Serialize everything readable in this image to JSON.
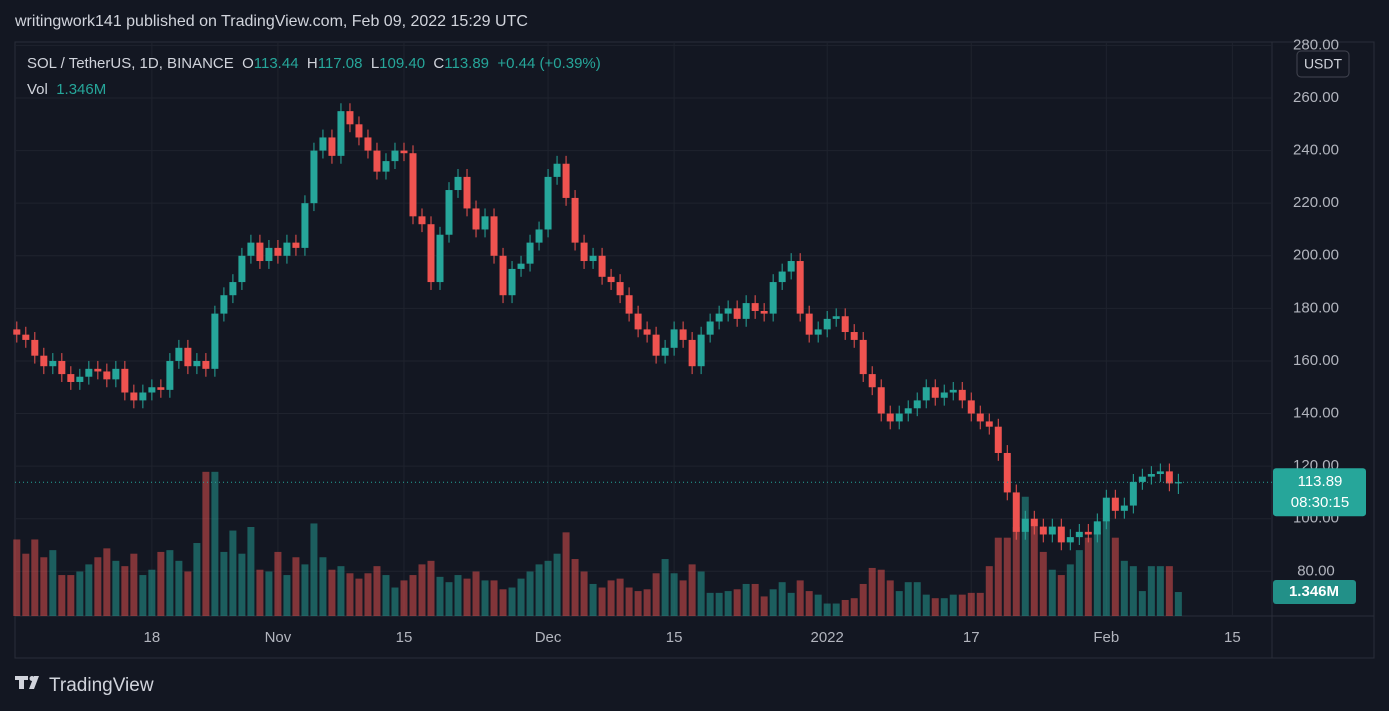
{
  "header": {
    "published": "writingwork141 published on TradingView.com, Feb 09, 2022 15:29 UTC"
  },
  "footer": {
    "brand": "TradingView"
  },
  "chart_data": {
    "type": "candlestick",
    "legend": {
      "symbol": "SOL / TetherUS, 1D, BINANCE",
      "items": [
        {
          "key": "O",
          "value": "113.44"
        },
        {
          "key": "H",
          "value": "117.08"
        },
        {
          "key": "L",
          "value": "109.40"
        },
        {
          "key": "C",
          "value": "113.89"
        }
      ],
      "change": "+0.44 (+0.39%)",
      "volume_key": "Vol",
      "volume": "1.346M"
    },
    "currency": "USDT",
    "countdown": "08:30:15",
    "up_color": "#26a69a",
    "down_color": "#ef5350",
    "grid": true,
    "ylim": [
      63,
      281.3
    ],
    "yticks": [
      {
        "value": 80,
        "label": "80.00"
      },
      {
        "value": 100,
        "label": "100.00"
      },
      {
        "value": 120,
        "label": "120.00"
      },
      {
        "value": 140,
        "label": "140.00"
      },
      {
        "value": 160,
        "label": "160.00"
      },
      {
        "value": 180,
        "label": "180.00"
      },
      {
        "value": 200,
        "label": "200.00"
      },
      {
        "value": 220,
        "label": "220.00"
      },
      {
        "value": 240,
        "label": "240.00"
      },
      {
        "value": 260,
        "label": "260.00"
      },
      {
        "value": 280,
        "label": "280.00"
      }
    ],
    "xlim": [
      -0.2,
      139.4
    ],
    "xticks": [
      {
        "value": 15,
        "label": "18"
      },
      {
        "value": 29,
        "label": "Nov"
      },
      {
        "value": 43,
        "label": "15"
      },
      {
        "value": 59,
        "label": "Dec"
      },
      {
        "value": 73,
        "label": "15"
      },
      {
        "value": 90,
        "label": "2022"
      },
      {
        "value": 106,
        "label": "17"
      },
      {
        "value": 121,
        "label": "Feb"
      },
      {
        "value": 135,
        "label": "15"
      }
    ],
    "open": [
      172,
      170,
      168,
      162,
      158,
      160,
      155,
      152,
      154,
      157,
      156,
      153,
      157,
      148,
      145,
      148,
      150,
      149,
      160,
      165,
      158,
      160,
      157,
      178,
      185,
      190,
      200,
      205,
      198,
      203,
      200,
      205,
      203,
      220,
      240,
      245,
      238,
      255,
      250,
      245,
      240,
      232,
      236,
      240,
      239,
      215,
      212,
      190,
      208,
      225,
      230,
      218,
      210,
      215,
      200,
      185,
      195,
      197,
      205,
      210,
      230,
      235,
      222,
      205,
      198,
      200,
      192,
      190,
      185,
      178,
      172,
      170,
      162,
      165,
      172,
      168,
      158,
      170,
      175,
      178,
      180,
      176,
      182,
      179,
      178,
      190,
      194,
      198,
      178,
      170,
      172,
      176,
      177,
      171,
      168,
      155,
      150,
      140,
      137,
      140,
      142,
      145,
      150,
      146,
      148,
      149,
      145,
      140,
      137,
      135,
      125,
      110,
      95,
      100,
      97,
      94,
      97,
      91,
      93,
      95,
      94,
      99,
      108,
      103,
      105,
      114,
      116,
      117,
      118,
      113.44
    ],
    "high": [
      175,
      173,
      171,
      165,
      163,
      163,
      158,
      157,
      160,
      160,
      159,
      160,
      160,
      151,
      151,
      153,
      153,
      163,
      168,
      168,
      163,
      163,
      181,
      188,
      193,
      203,
      208,
      208,
      206,
      206,
      208,
      208,
      223,
      243,
      248,
      248,
      258,
      258,
      253,
      248,
      243,
      239,
      243,
      243,
      242,
      218,
      215,
      211,
      228,
      233,
      233,
      221,
      218,
      218,
      203,
      198,
      200,
      208,
      213,
      233,
      238,
      238,
      225,
      208,
      203,
      203,
      195,
      193,
      188,
      181,
      175,
      173,
      168,
      175,
      175,
      171,
      173,
      178,
      181,
      183,
      183,
      185,
      185,
      182,
      193,
      197,
      201,
      201,
      181,
      175,
      179,
      180,
      180,
      174,
      171,
      158,
      153,
      143,
      143,
      145,
      148,
      153,
      153,
      151,
      152,
      152,
      148,
      143,
      140,
      138,
      128,
      113,
      103,
      103,
      100,
      100,
      100,
      96,
      98,
      98,
      102,
      111,
      111,
      108,
      117,
      119,
      120,
      121,
      121,
      117.08
    ],
    "low": [
      167,
      165,
      159,
      155,
      155,
      152,
      149,
      149,
      151,
      153,
      150,
      150,
      145,
      142,
      142,
      145,
      146,
      146,
      157,
      155,
      155,
      154,
      154,
      175,
      182,
      187,
      197,
      195,
      195,
      197,
      197,
      200,
      200,
      217,
      237,
      235,
      235,
      247,
      242,
      237,
      229,
      229,
      233,
      236,
      212,
      209,
      187,
      187,
      205,
      222,
      215,
      207,
      207,
      197,
      182,
      182,
      192,
      194,
      202,
      207,
      227,
      219,
      202,
      195,
      195,
      189,
      187,
      182,
      175,
      169,
      167,
      159,
      159,
      162,
      165,
      155,
      155,
      167,
      172,
      175,
      173,
      173,
      176,
      175,
      175,
      187,
      191,
      175,
      167,
      167,
      169,
      173,
      168,
      165,
      152,
      147,
      137,
      134,
      134,
      137,
      139,
      142,
      143,
      143,
      145,
      142,
      137,
      134,
      132,
      122,
      107,
      92,
      92,
      94,
      91,
      91,
      88,
      88,
      90,
      91,
      91,
      96,
      100,
      100,
      102,
      111,
      113,
      114,
      110.44,
      109.4
    ],
    "close": [
      170,
      168,
      162,
      158,
      160,
      155,
      152,
      154,
      157,
      156,
      153,
      157,
      148,
      145,
      148,
      150,
      149,
      160,
      165,
      158,
      160,
      157,
      178,
      185,
      190,
      200,
      205,
      198,
      203,
      200,
      205,
      203,
      220,
      240,
      245,
      238,
      255,
      250,
      245,
      240,
      232,
      236,
      240,
      239,
      215,
      212,
      190,
      208,
      225,
      230,
      218,
      210,
      215,
      200,
      185,
      195,
      197,
      205,
      210,
      230,
      235,
      222,
      205,
      198,
      200,
      192,
      190,
      185,
      178,
      172,
      170,
      162,
      165,
      172,
      168,
      158,
      170,
      175,
      178,
      180,
      176,
      182,
      179,
      178,
      190,
      194,
      198,
      178,
      170,
      172,
      176,
      177,
      171,
      168,
      155,
      150,
      140,
      137,
      140,
      142,
      145,
      150,
      146,
      148,
      149,
      145,
      140,
      137,
      135,
      125,
      110,
      95,
      100,
      97,
      94,
      97,
      91,
      93,
      95,
      94,
      99,
      108,
      103,
      105,
      114,
      116,
      117,
      118,
      113.44,
      113.89
    ],
    "volume": [
      4.3,
      3.5,
      4.3,
      3.3,
      3.7,
      2.3,
      2.3,
      2.5,
      2.9,
      3.3,
      3.8,
      3.1,
      2.8,
      3.5,
      2.3,
      2.6,
      3.6,
      3.7,
      3.1,
      2.5,
      4.1,
      8.1,
      8.1,
      3.6,
      4.8,
      3.5,
      5.0,
      2.6,
      2.5,
      3.6,
      2.3,
      3.3,
      2.9,
      5.2,
      3.3,
      2.6,
      2.8,
      2.4,
      2.1,
      2.4,
      2.8,
      2.3,
      1.6,
      2.0,
      2.3,
      2.9,
      3.1,
      2.2,
      1.9,
      2.3,
      2.1,
      2.5,
      2.0,
      2.0,
      1.5,
      1.6,
      2.1,
      2.5,
      2.9,
      3.1,
      3.5,
      4.7,
      3.2,
      2.5,
      1.8,
      1.6,
      2.0,
      2.1,
      1.6,
      1.4,
      1.5,
      2.4,
      3.2,
      2.4,
      2.0,
      2.9,
      2.5,
      1.3,
      1.3,
      1.4,
      1.5,
      1.8,
      1.8,
      1.1,
      1.5,
      1.9,
      1.3,
      2.0,
      1.4,
      1.2,
      0.7,
      0.7,
      0.9,
      1.0,
      1.8,
      2.7,
      2.6,
      2.0,
      1.4,
      1.9,
      1.9,
      1.2,
      1.0,
      1.0,
      1.2,
      1.2,
      1.3,
      1.3,
      2.8,
      4.4,
      4.4,
      5.0,
      6.7,
      5.0,
      3.6,
      2.6,
      2.3,
      2.9,
      3.7,
      4.4,
      4.7,
      5.4,
      4.4,
      3.1,
      2.8,
      1.4,
      2.8,
      2.8,
      2.8,
      1.346
    ]
  }
}
